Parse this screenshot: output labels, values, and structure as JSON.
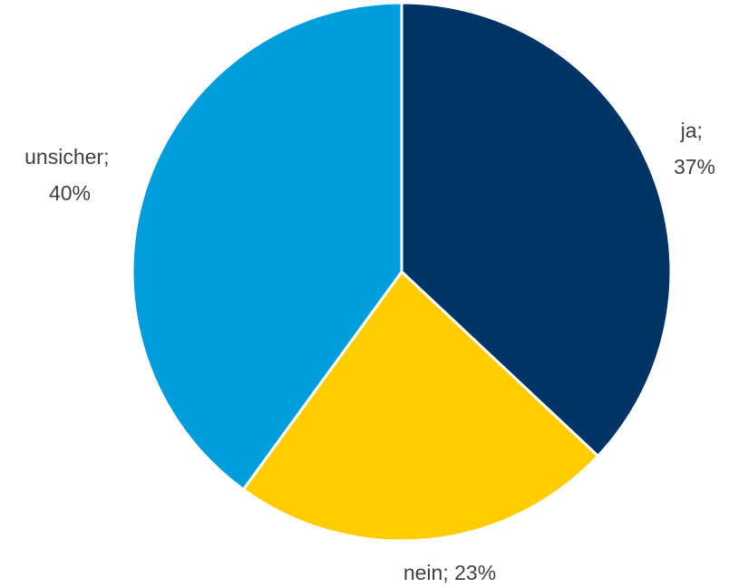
{
  "chart_data": {
    "type": "pie",
    "start_angle_deg": 0,
    "direction": "clockwise",
    "slices": [
      {
        "label": "ja",
        "value": 37,
        "display": "37%",
        "color": "#003366"
      },
      {
        "label": "nein",
        "value": 23,
        "display": "23%",
        "color": "#FFCC00"
      },
      {
        "label": "unsicher",
        "value": 40,
        "display": "40%",
        "color": "#009DDB"
      }
    ]
  }
}
